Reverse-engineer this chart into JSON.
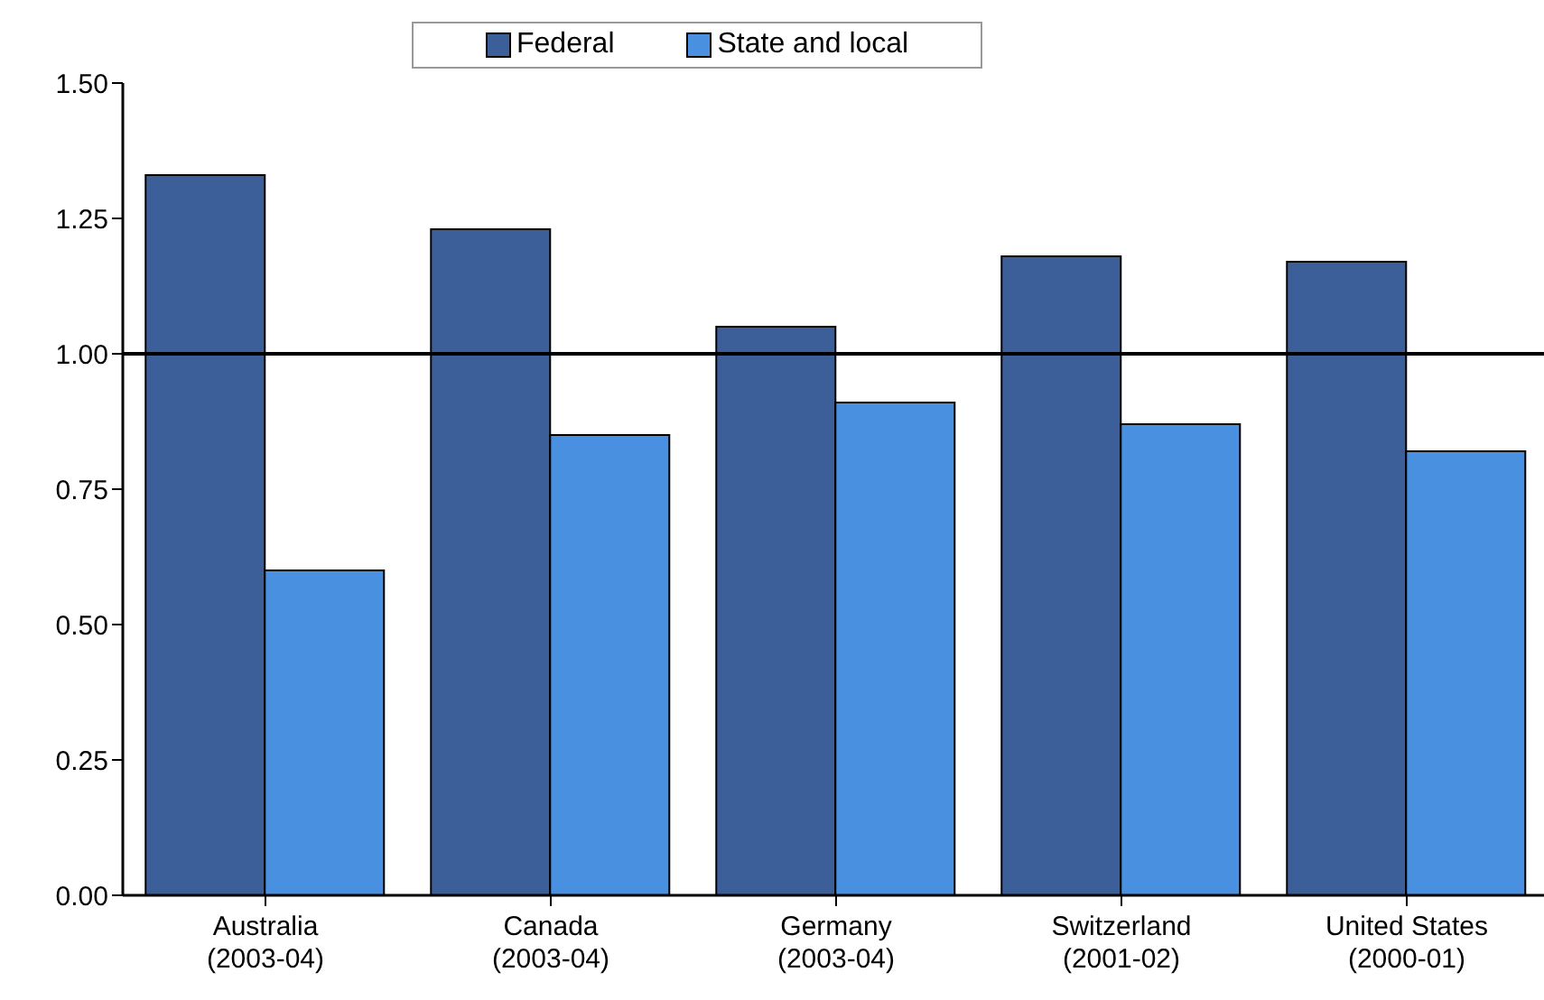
{
  "chart_data": {
    "type": "bar",
    "categories": [
      "Australia\n(2003-04)",
      "Canada\n(2003-04)",
      "Germany\n(2003-04)",
      "Switzerland\n(2001-02)",
      "United States\n(2000-01)"
    ],
    "series": [
      {
        "name": "Federal",
        "color": "#3d5f99",
        "values": [
          1.33,
          1.23,
          1.05,
          1.18,
          1.17
        ]
      },
      {
        "name": "State and local",
        "color": "#4a90e0",
        "values": [
          0.6,
          0.85,
          0.91,
          0.87,
          0.82
        ]
      }
    ],
    "ylim": [
      0,
      1.5
    ],
    "yticks": [
      {
        "value": 0,
        "label": "0.00"
      },
      {
        "value": 0.25,
        "label": "0.25"
      },
      {
        "value": 0.5,
        "label": "0.50"
      },
      {
        "value": 0.75,
        "label": "0.75"
      },
      {
        "value": 1,
        "label": "1.00"
      },
      {
        "value": 1.25,
        "label": "1.25"
      },
      {
        "value": 1.5,
        "label": "1.50"
      }
    ],
    "ref_lines": [
      {
        "axis": "y",
        "value": 1,
        "color": "#000000"
      }
    ],
    "legend": "top",
    "grid": false
  }
}
